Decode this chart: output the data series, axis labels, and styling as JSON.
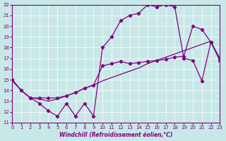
{
  "title": "",
  "xlabel": "Windchill (Refroidissement éolien,°C)",
  "ylabel": "",
  "bg_color": "#c8e8e8",
  "line_color": "#800080",
  "xlim": [
    0,
    23
  ],
  "ylim": [
    11,
    22
  ],
  "yticks": [
    11,
    12,
    13,
    14,
    15,
    16,
    17,
    18,
    19,
    20,
    21,
    22
  ],
  "xticks": [
    0,
    1,
    2,
    3,
    4,
    5,
    6,
    7,
    8,
    9,
    10,
    11,
    12,
    13,
    14,
    15,
    16,
    17,
    18,
    19,
    20,
    21,
    22,
    23
  ],
  "line1_x": [
    0,
    1,
    2,
    3,
    4,
    5,
    6,
    7,
    8,
    9,
    10,
    11,
    12,
    13,
    14,
    15,
    16,
    17,
    18,
    19,
    20,
    21,
    22,
    23
  ],
  "line1_y": [
    15.0,
    14.0,
    13.3,
    12.8,
    12.1,
    11.6,
    12.8,
    11.6,
    12.8,
    11.6,
    18.0,
    19.0,
    20.5,
    21.0,
    21.2,
    22.0,
    21.8,
    22.0,
    21.8,
    17.0,
    16.8,
    14.9,
    18.5,
    16.8
  ],
  "line2_x": [
    0,
    1,
    2,
    3,
    4,
    5,
    6,
    7,
    8,
    9,
    10,
    11,
    12,
    13,
    14,
    15,
    16,
    17,
    18,
    19,
    20,
    21,
    22,
    23
  ],
  "line2_y": [
    15.0,
    14.0,
    13.3,
    13.3,
    13.3,
    13.3,
    13.5,
    13.8,
    14.2,
    14.5,
    16.3,
    16.5,
    16.7,
    16.5,
    16.6,
    16.7,
    16.8,
    16.9,
    17.1,
    17.2,
    20.0,
    19.7,
    18.5,
    17.0
  ],
  "line3_x": [
    0,
    1,
    2,
    3,
    4,
    5,
    6,
    7,
    8,
    9,
    10,
    11,
    12,
    13,
    14,
    15,
    16,
    17,
    18,
    19,
    20,
    21,
    22,
    23
  ],
  "line3_y": [
    14.9,
    14.0,
    13.3,
    13.2,
    13.0,
    13.2,
    13.5,
    13.8,
    14.2,
    14.5,
    14.9,
    15.2,
    15.5,
    15.8,
    16.1,
    16.5,
    16.8,
    17.1,
    17.4,
    17.7,
    18.0,
    18.3,
    18.6,
    16.8
  ]
}
